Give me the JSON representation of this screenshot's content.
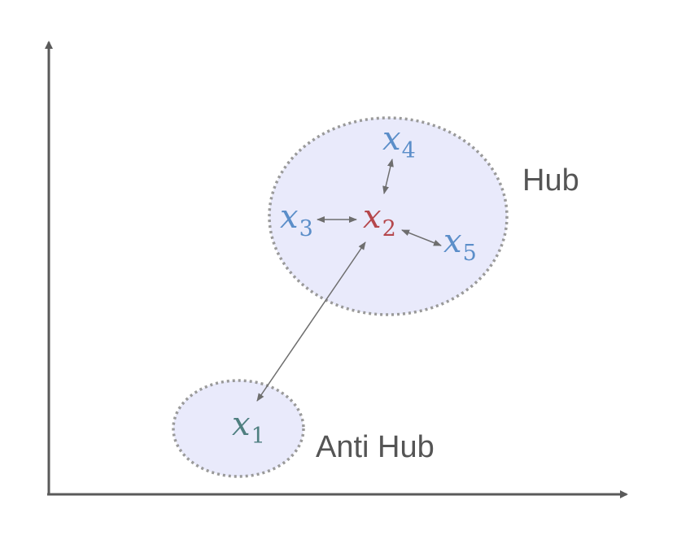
{
  "colors": {
    "axis": "#5a5a5a",
    "region_fill": "#e9eafb",
    "region_stroke": "#9a9a9a",
    "arrow": "#6e6e6e",
    "neighbor": "#5b8ec9",
    "hub_point": "#b5474c",
    "anti_hub_point": "#4f7f80",
    "label_text": "#555555"
  },
  "regions": {
    "hub_label": "Hub",
    "anti_hub_label": "Anti Hub"
  },
  "points": {
    "x1": {
      "base": "x",
      "sub": "1"
    },
    "x2": {
      "base": "x",
      "sub": "2"
    },
    "x3": {
      "base": "x",
      "sub": "3"
    },
    "x4": {
      "base": "x",
      "sub": "4"
    },
    "x5": {
      "base": "x",
      "sub": "5"
    }
  }
}
